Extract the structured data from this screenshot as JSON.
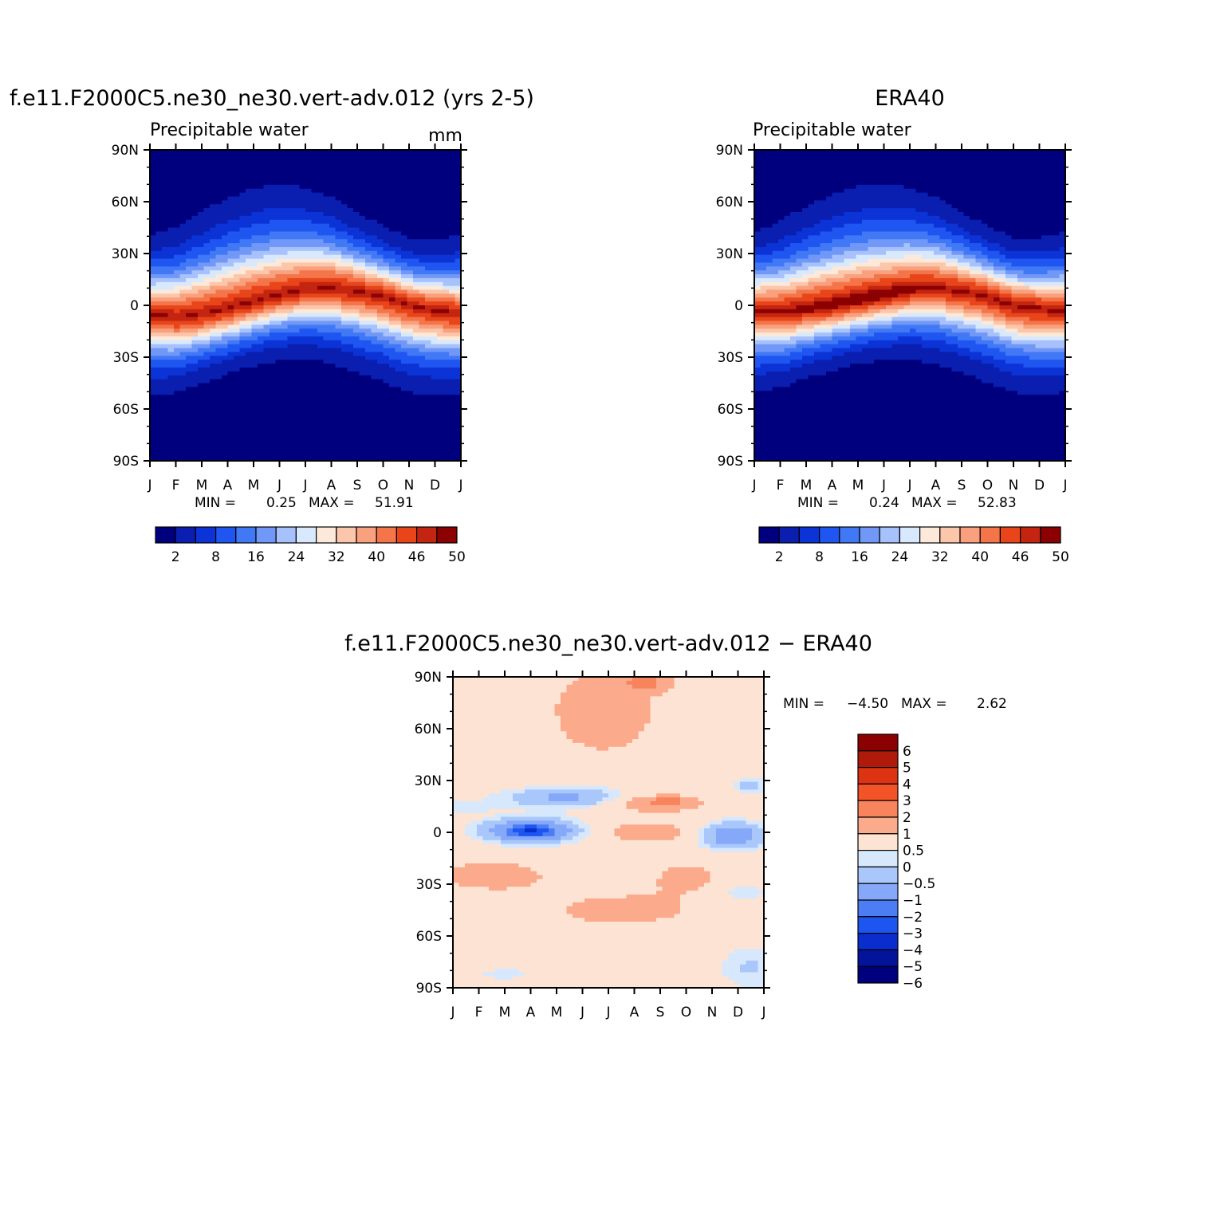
{
  "chart_data": [
    {
      "type": "heatmap",
      "title": "f.e11.F2000C5.ne30_ne30.vert-adv.012 (yrs 2-5)",
      "subtitle": "Precipitable water",
      "units": "mm",
      "x": [
        "J",
        "F",
        "M",
        "A",
        "M",
        "J",
        "J",
        "A",
        "S",
        "O",
        "N",
        "D",
        "J"
      ],
      "y_ticks": [
        "90N",
        "60N",
        "30N",
        "0",
        "30S",
        "60S",
        "90S"
      ],
      "stats": {
        "min_label": "MIN =",
        "min": "0.25",
        "max_label": "MAX =",
        "max": "51.91"
      },
      "colorbar": {
        "labels": [
          "2",
          "8",
          "16",
          "24",
          "32",
          "40",
          "46",
          "50"
        ]
      },
      "features": {
        "tropical_max_latitude_by_month": [
          -5,
          -7,
          -5,
          -2,
          2,
          6,
          9,
          10,
          8,
          5,
          0,
          -3,
          -5
        ],
        "peak_value": 51.91
      }
    },
    {
      "type": "heatmap",
      "title": "ERA40",
      "subtitle": "Precipitable water",
      "x": [
        "J",
        "F",
        "M",
        "A",
        "M",
        "J",
        "J",
        "A",
        "S",
        "O",
        "N",
        "D",
        "J"
      ],
      "y_ticks": [
        "90N",
        "60N",
        "30N",
        "0",
        "30S",
        "60S",
        "90S"
      ],
      "stats": {
        "min_label": "MIN =",
        "min": "0.24",
        "max_label": "MAX =",
        "max": "52.83"
      },
      "colorbar": {
        "labels": [
          "2",
          "8",
          "16",
          "24",
          "32",
          "40",
          "46",
          "50"
        ]
      },
      "features": {
        "tropical_max_latitude_by_month": [
          -3,
          -4,
          -2,
          0,
          3,
          6,
          9,
          10,
          8,
          5,
          0,
          -2,
          -3
        ],
        "peak_value": 52.83
      }
    },
    {
      "type": "heatmap",
      "title": "f.e11.F2000C5.ne30_ne30.vert-adv.012 − ERA40",
      "x": [
        "J",
        "F",
        "M",
        "A",
        "M",
        "J",
        "J",
        "A",
        "S",
        "O",
        "N",
        "D",
        "J"
      ],
      "y_ticks": [
        "90N",
        "60N",
        "30N",
        "0",
        "30S",
        "60S",
        "90S"
      ],
      "stats": {
        "min_label": "MIN =",
        "min": "−4.50",
        "max_label": "MAX =",
        "max": "2.62"
      },
      "colorbar": {
        "labels": [
          "6",
          "5",
          "4",
          "3",
          "2",
          "1",
          "0.5",
          "0",
          "−0.5",
          "−1",
          "−2",
          "−3",
          "−4",
          "−5",
          "−6"
        ]
      }
    }
  ],
  "colors": {
    "pw_palette": [
      "#00007f",
      "#0a1fb0",
      "#0b33d6",
      "#1f55f0",
      "#4178f5",
      "#7198f7",
      "#a6c1fb",
      "#d8e8fd",
      "#fde9d9",
      "#fbc6a9",
      "#f9a07e",
      "#f47549",
      "#e8451b",
      "#c42510",
      "#8b0000"
    ],
    "diff_palette": [
      "#8b0000",
      "#b01a0a",
      "#dc3412",
      "#f25427",
      "#f8845d",
      "#fbab8b",
      "#fde3d3",
      "#d7e8fd",
      "#a9c7fb",
      "#85a8f8",
      "#4d7df4",
      "#1d55f1",
      "#0a2dcd",
      "#03149a",
      "#00007f"
    ]
  }
}
